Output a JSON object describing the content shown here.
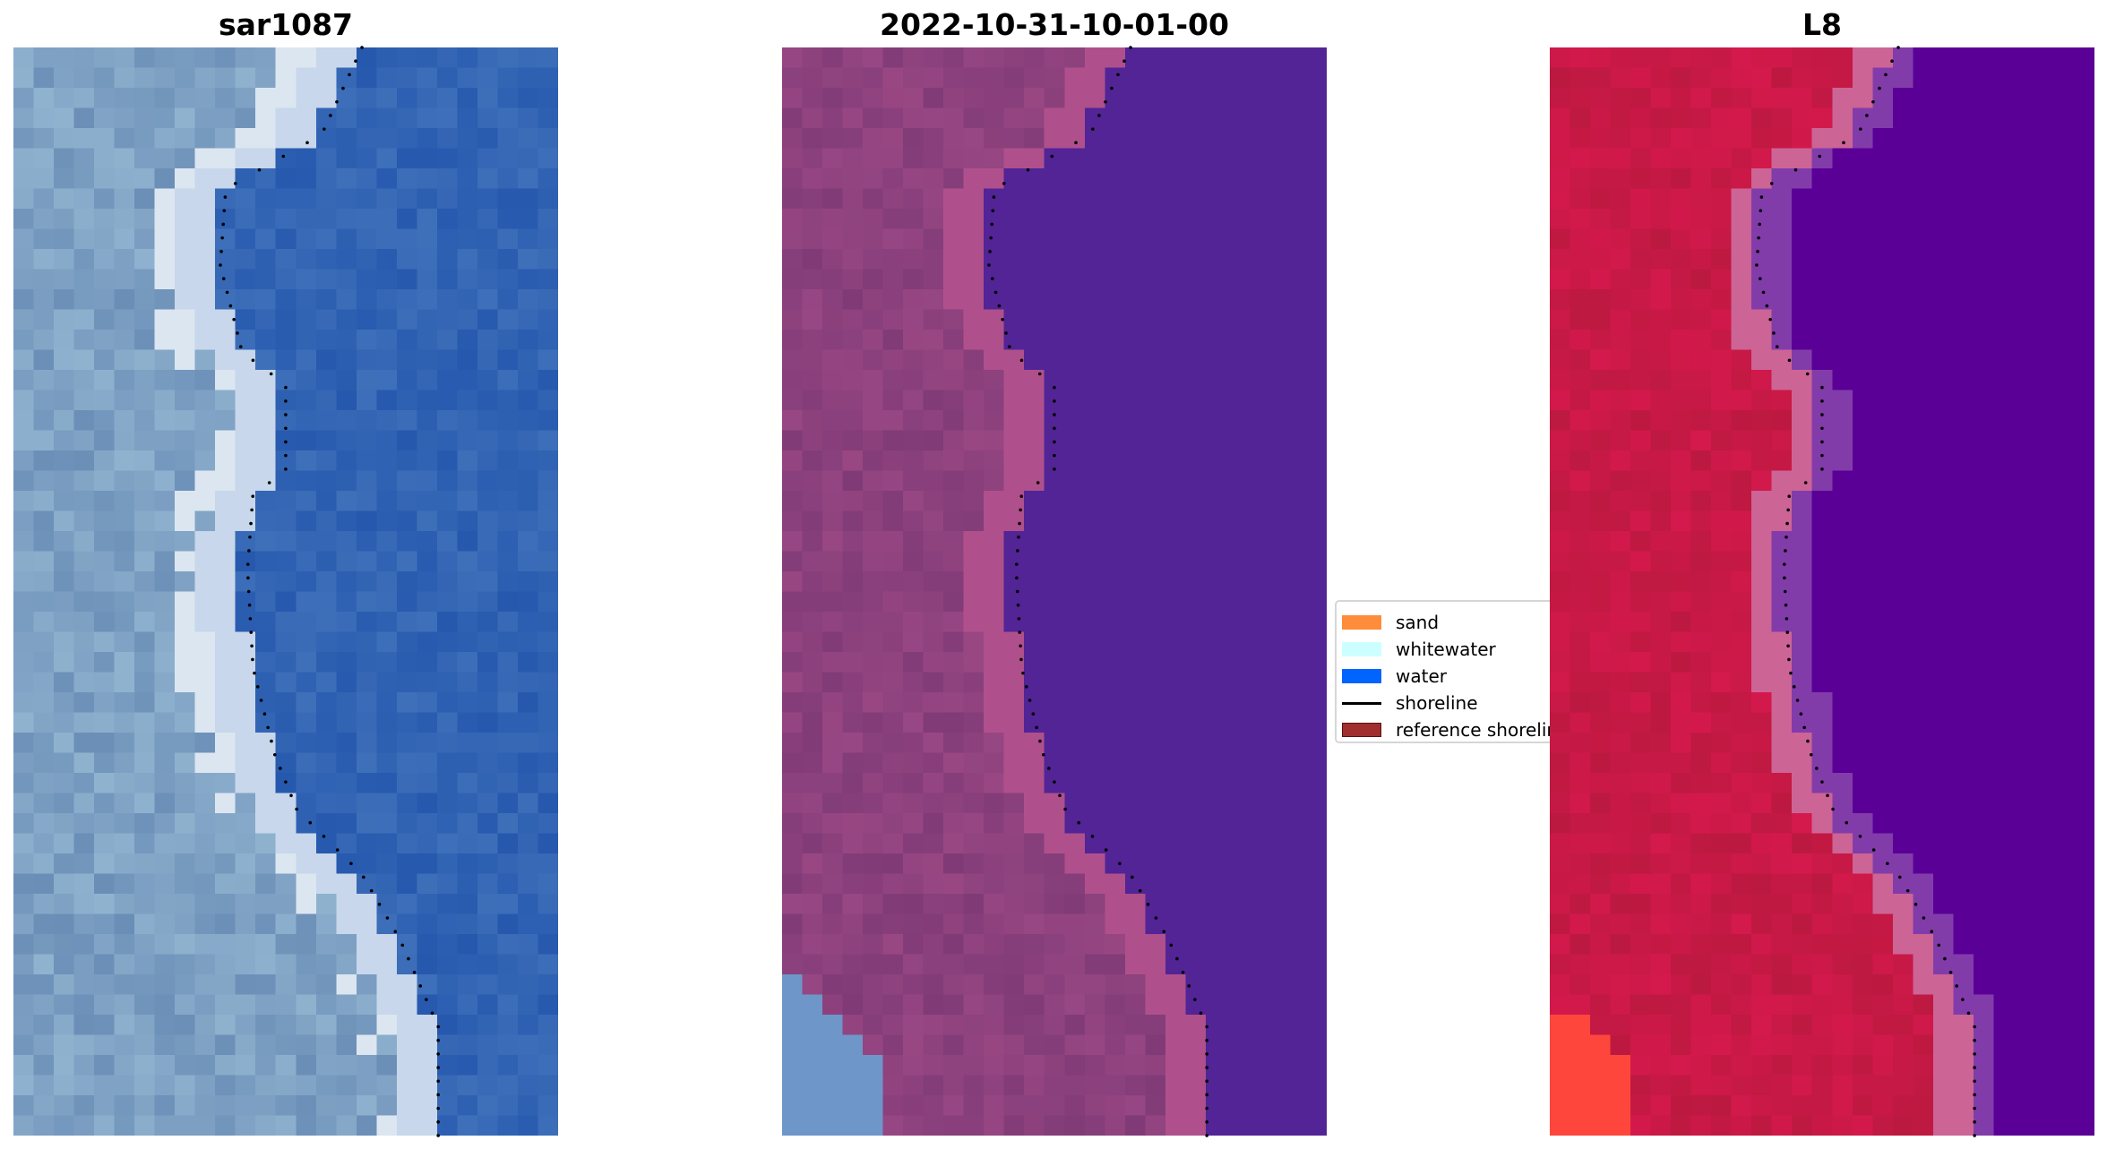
{
  "panels": [
    {
      "title": "sar1087",
      "style": "rgb"
    },
    {
      "title": "2022-10-31-10-01-00",
      "style": "classified"
    },
    {
      "title": "L8",
      "style": "false-color"
    }
  ],
  "legend": {
    "items": [
      {
        "label": "sand",
        "color": "#ff8c3a",
        "kind": "patch"
      },
      {
        "label": "whitewater",
        "color": "#ccffff",
        "kind": "patch"
      },
      {
        "label": "water",
        "color": "#0064ff",
        "kind": "patch"
      },
      {
        "label": "shoreline",
        "color": "#000000",
        "kind": "line"
      },
      {
        "label": "reference shoreline",
        "color": "#a02e2e",
        "kind": "patch"
      }
    ]
  }
}
